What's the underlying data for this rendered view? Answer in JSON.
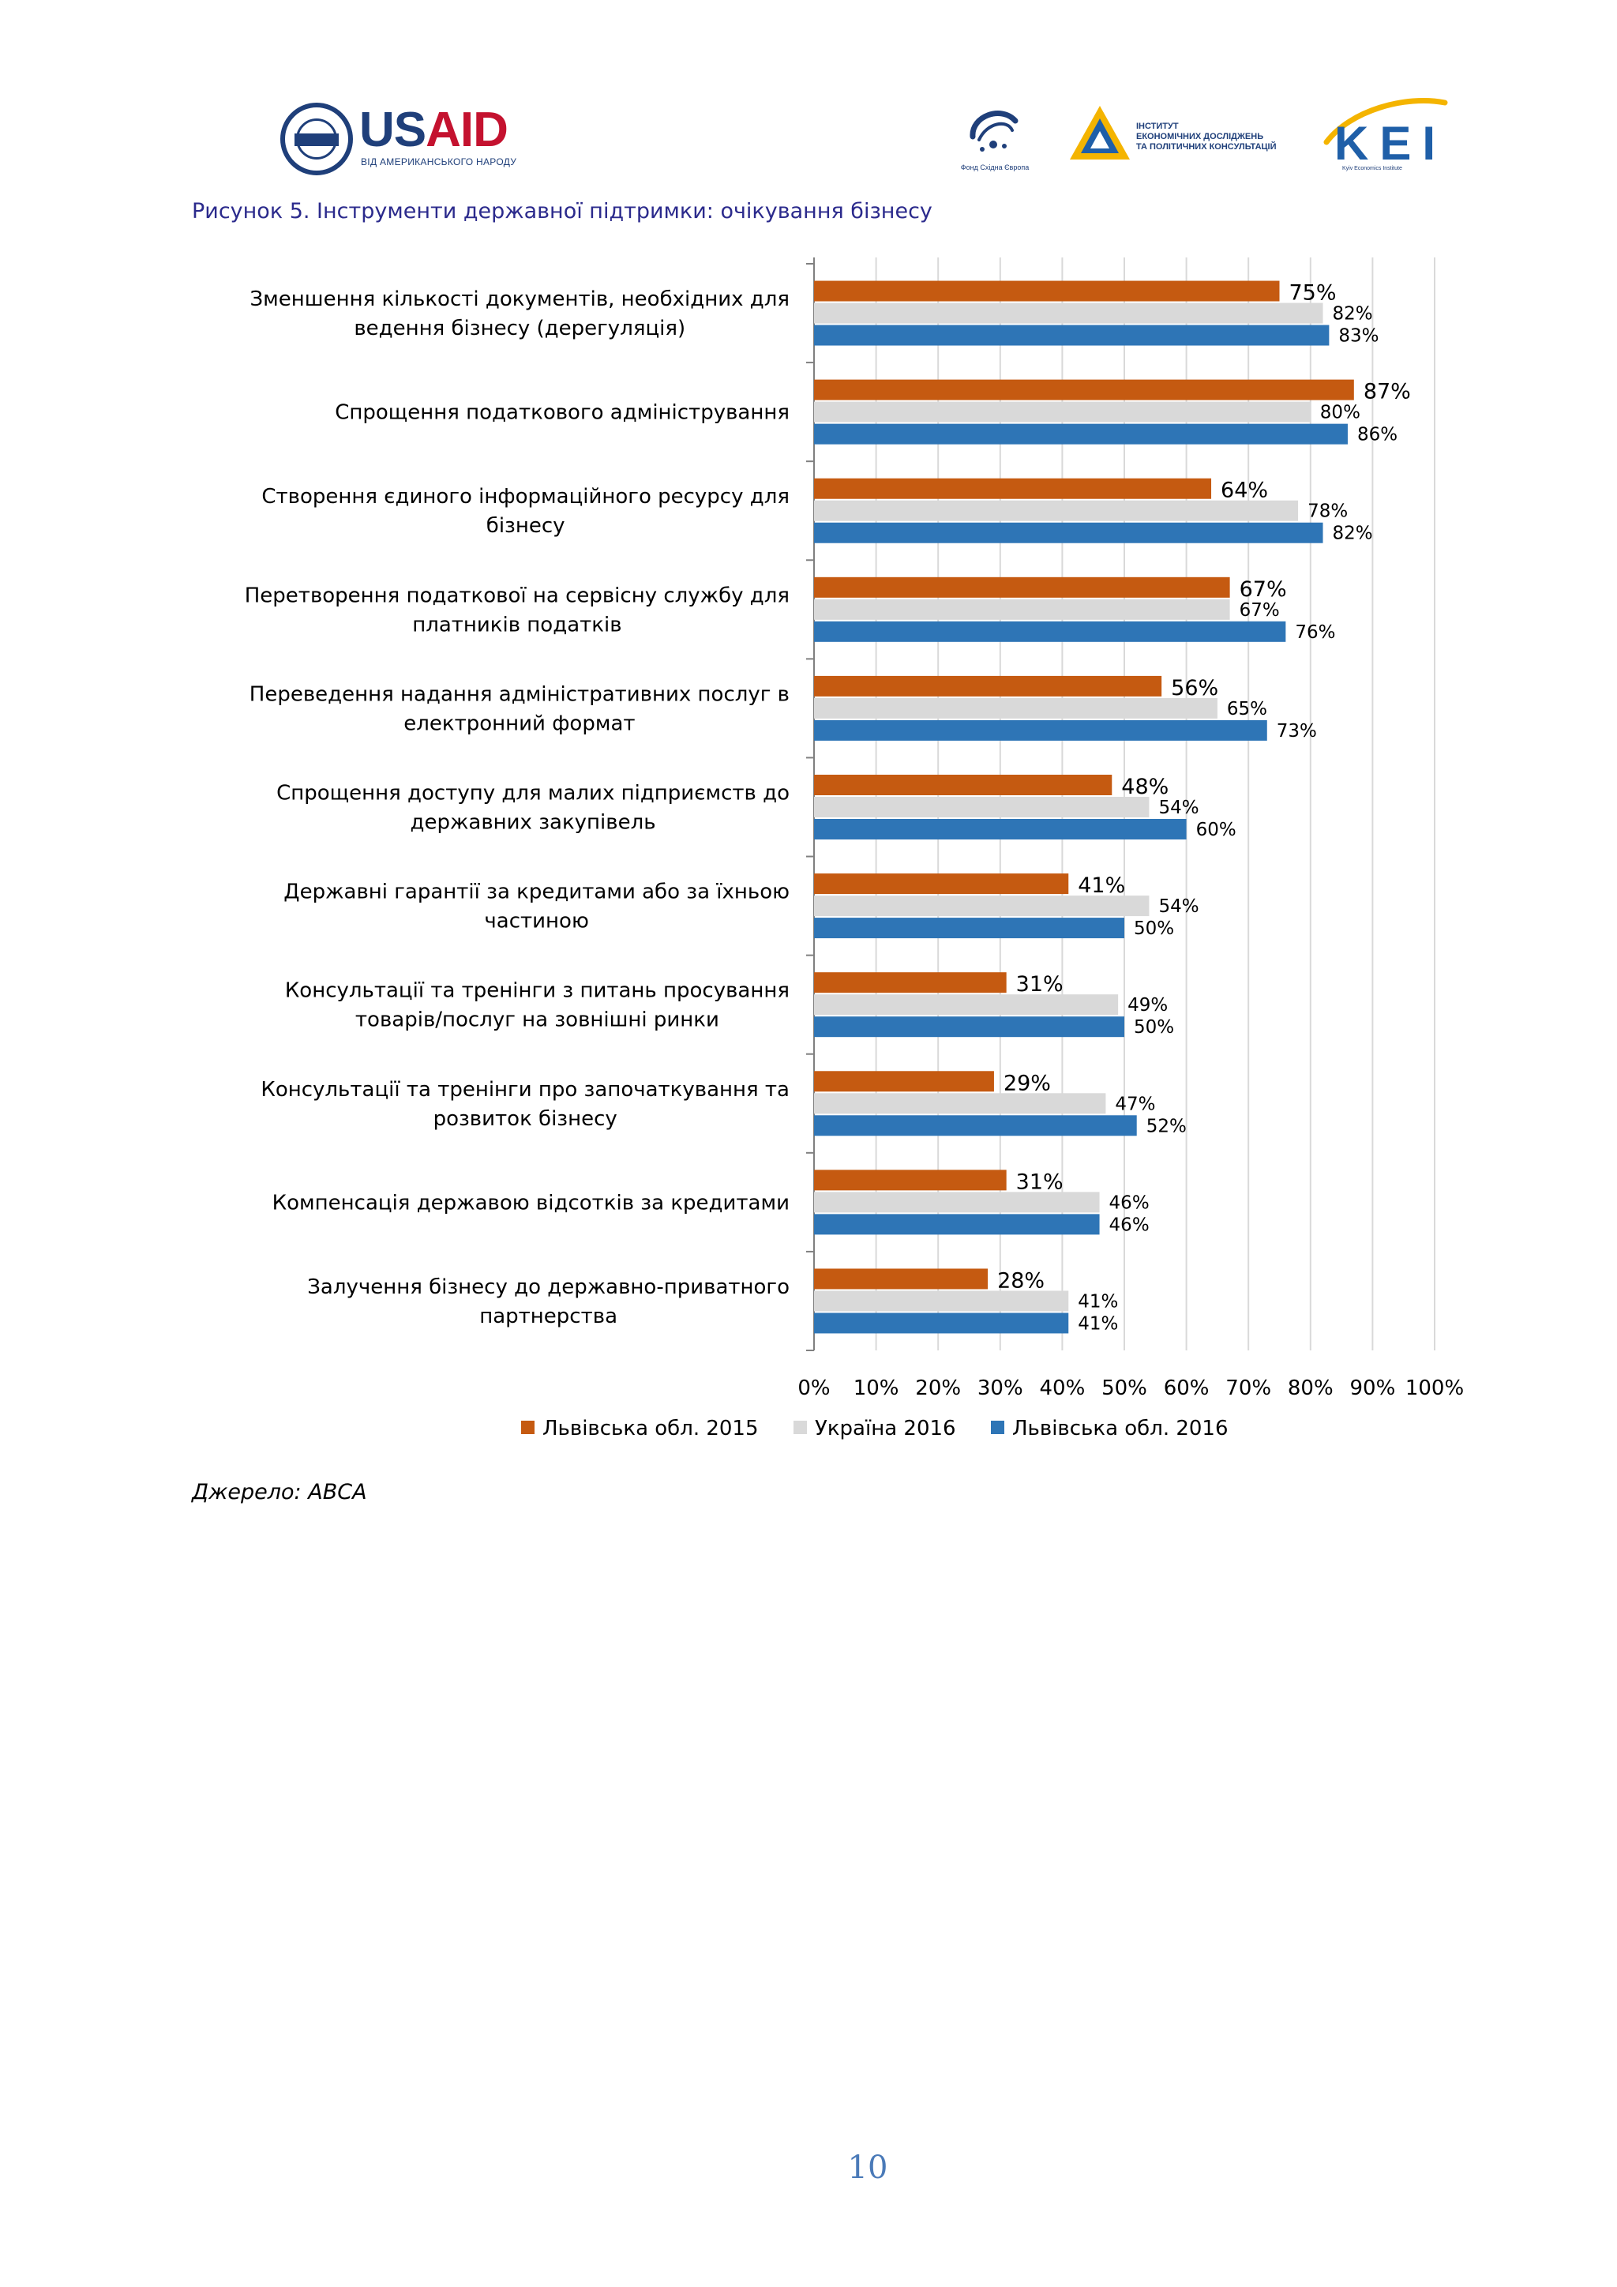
{
  "header": {
    "usaid": {
      "word_us": "US",
      "word_aid": "AID",
      "tagline": "ВІД АМЕРИКАНСЬКОГО НАРОДУ"
    },
    "eef": {
      "caption": "Фонд Східна Європа"
    },
    "ier": {
      "line1": "ІНСТИТУТ",
      "line2": "ЕКОНОМІЧНИХ ДОСЛІДЖЕНЬ",
      "line3": "ТА ПОЛІТИЧНИХ КОНСУЛЬТАЦІЙ"
    },
    "kei": {
      "word": "KEI",
      "caption": "Kyiv Economics Institute"
    }
  },
  "figure_title": "Рисунок 5. Інструменти державної підтримки: очікування бізнесу",
  "source": "Джерело: АВСА",
  "page_number": "10",
  "colors": {
    "lviv2015": "#c55a11",
    "ukraine2016": "#d9d9d9",
    "lviv2016": "#2e75b6",
    "grid": "#d9d9d9",
    "axis": "#808080",
    "text": "#000000"
  },
  "chart_data": {
    "type": "bar",
    "orientation": "horizontal",
    "title": "",
    "xlabel": "",
    "ylabel": "",
    "xlim": [
      0,
      100
    ],
    "grid": true,
    "legend": "bottom",
    "x_ticks": [
      "0%",
      "10%",
      "20%",
      "30%",
      "40%",
      "50%",
      "60%",
      "70%",
      "80%",
      "90%",
      "100%"
    ],
    "categories": [
      [
        "Зменшення кількості документів, необхідних для",
        "ведення бізнесу (дерегуляція)"
      ],
      [
        "Спрощення податкового адміністрування"
      ],
      [
        "Створення єдиного інформаційного ресурсу для",
        "бізнесу"
      ],
      [
        "Перетворення податкової на сервісну службу для",
        "платників податків"
      ],
      [
        "Переведення надання адміністративних послуг в",
        "електронний формат"
      ],
      [
        "Спрощення доступу для малих підприємств до",
        "державних закупівель"
      ],
      [
        "Державні гарантії за кредитами або за їхньою",
        "частиною"
      ],
      [
        "Консультації та тренінги з питань просування",
        "товарів/послуг на зовнішні ринки"
      ],
      [
        "Консультації та тренінги про започаткування та",
        "розвиток бізнесу"
      ],
      [
        "Компенсація державою відсотків за кредитами"
      ],
      [
        "Залучення бізнесу до державно-приватного",
        "партнерства"
      ]
    ],
    "series": [
      {
        "name": "Львівська обл. 2015",
        "color_key": "lviv2015",
        "values": [
          75,
          87,
          64,
          67,
          56,
          48,
          41,
          31,
          29,
          31,
          28
        ],
        "labels": [
          "75%",
          "87%",
          "64%",
          "67%",
          "56%",
          "48%",
          "41%",
          "31%",
          "29%",
          "31%",
          "28%"
        ]
      },
      {
        "name": "Україна 2016",
        "color_key": "ukraine2016",
        "values": [
          82,
          80,
          78,
          67,
          65,
          54,
          54,
          49,
          47,
          46,
          41
        ],
        "labels": [
          "82%",
          "80%",
          "78%",
          "67%",
          "65%",
          "54%",
          "54%",
          "49%",
          "47%",
          "46%",
          "41%"
        ]
      },
      {
        "name": "Львівська обл. 2016",
        "color_key": "lviv2016",
        "values": [
          83,
          86,
          82,
          76,
          73,
          60,
          50,
          50,
          52,
          46,
          41
        ],
        "labels": [
          "83%",
          "86%",
          "82%",
          "76%",
          "73%",
          "60%",
          "50%",
          "50%",
          "52%",
          "46%",
          "41%"
        ]
      }
    ]
  }
}
